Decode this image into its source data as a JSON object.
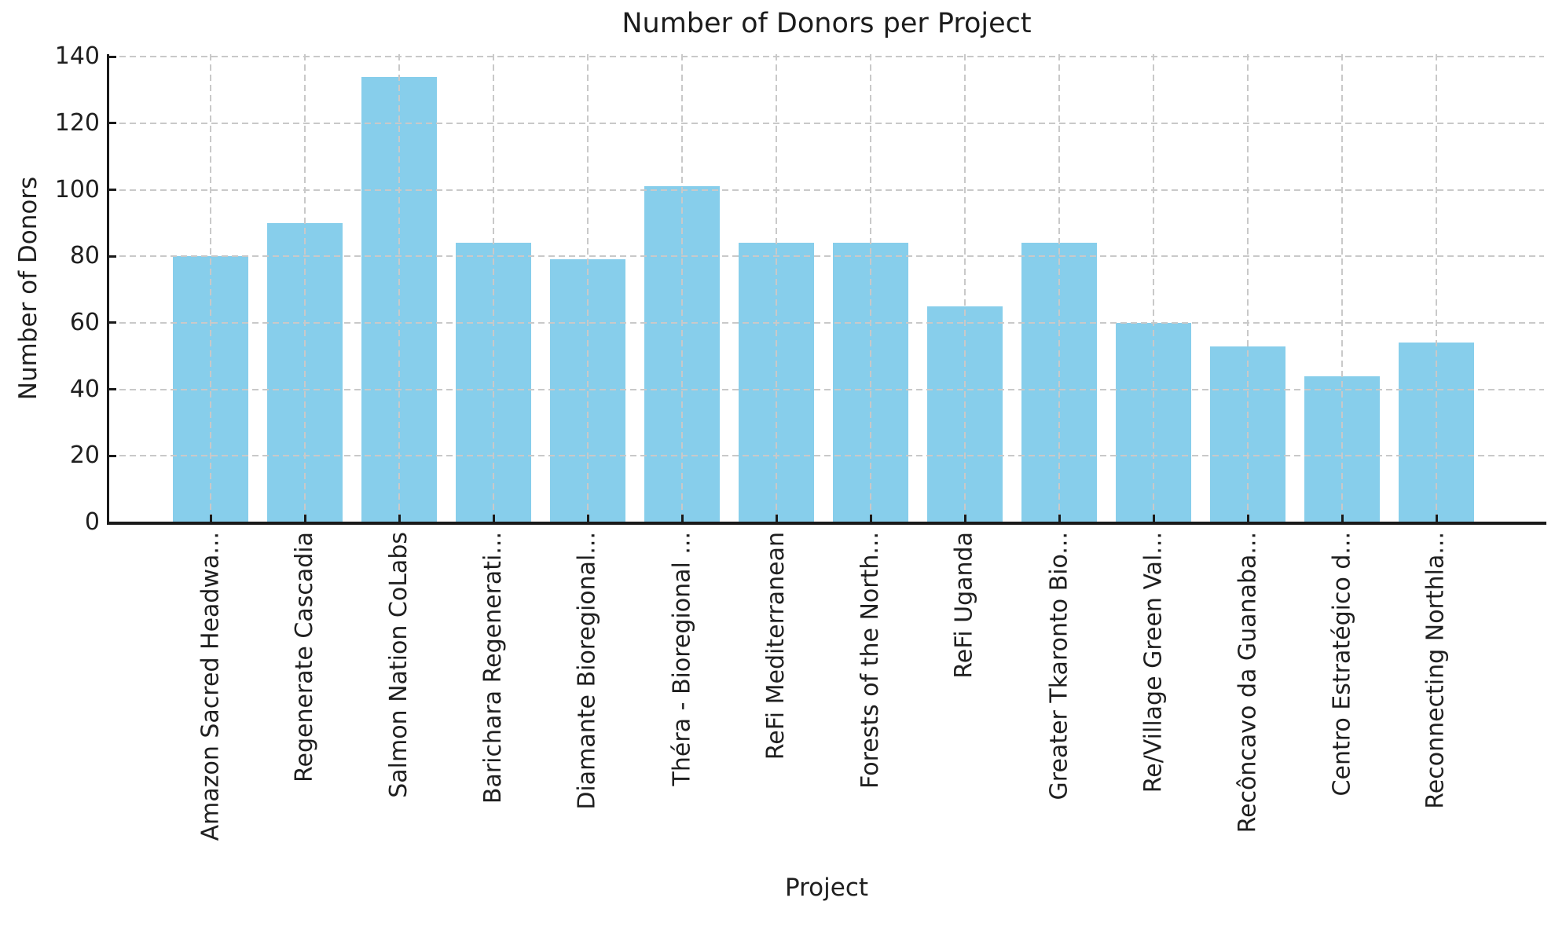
{
  "figure": {
    "background": "#ffffff"
  },
  "chart_data": {
    "type": "bar",
    "title": "Number of Donors per Project",
    "xlabel": "Project",
    "ylabel": "Number of Donors",
    "categories": [
      "Amazon Sacred Headwa...",
      "Regenerate Cascadia",
      "Salmon Nation CoLabs",
      "Barichara Regenerati...",
      "Diamante Bioregional...",
      "Théra - Bioregional ...",
      "ReFi Mediterranean",
      "Forests of the North...",
      "ReFi Uganda",
      "Greater Tkaronto Bio...",
      "Re/Village Green Val...",
      "Recôncavo da Guanaba...",
      "Centro Estratégico d...",
      "Reconnecting Northla..."
    ],
    "values": [
      80,
      90,
      134,
      84,
      79,
      101,
      84,
      84,
      65,
      84,
      60,
      53,
      44,
      54
    ],
    "yticks": [
      0,
      20,
      40,
      60,
      80,
      100,
      120,
      140
    ],
    "ylim": [
      0,
      140.75
    ],
    "bar_color": "#87ceeb",
    "grid": true,
    "grid_color": "#c9c9c9",
    "grid_style": "dashed",
    "legend": "none"
  }
}
